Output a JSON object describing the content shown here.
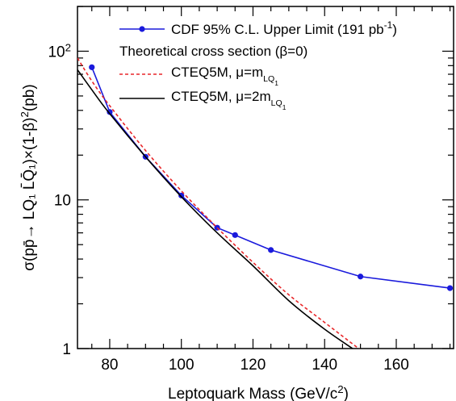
{
  "chart_data": {
    "type": "line",
    "title": "",
    "xlabel": "Leptoquark Mass (GeV/c²)",
    "ylabel": "σ(pp̄→ LQ₁ L̄Q̄₁)×(1-β)²(pb)",
    "xlim": [
      71,
      176
    ],
    "ylim": [
      1,
      200
    ],
    "y_scale": "log",
    "x_ticks": [
      80,
      100,
      120,
      140,
      160
    ],
    "y_ticks": [
      {
        "value": 1,
        "label": "1"
      },
      {
        "value": 10,
        "label": "10"
      },
      {
        "value": 100,
        "label": "10²"
      }
    ],
    "grid": false,
    "legend_position": "top-right",
    "legend_header": "Theoretical cross section (β=0)",
    "series": [
      {
        "name": "CDF 95% C.L. Upper Limit (191 pb⁻¹)",
        "color": "#1a1adc",
        "style": "solid-markers",
        "x": [
          75,
          80,
          90,
          100,
          110,
          115,
          125,
          150,
          175
        ],
        "y": [
          78,
          39,
          19.5,
          10.7,
          6.5,
          5.8,
          4.6,
          3.05,
          2.55
        ]
      },
      {
        "name": "CTEQ5M, μ=m_LQ₁",
        "color": "#e8272a",
        "style": "dashed",
        "x": [
          71,
          75,
          80,
          90,
          100,
          110,
          120,
          130,
          140,
          150,
          160
        ],
        "y": [
          90,
          63,
          43,
          21.5,
          11.5,
          6.5,
          3.8,
          2.3,
          1.5,
          0.98,
          0.65
        ]
      },
      {
        "name": "CTEQ5M, μ=2m_LQ₁",
        "color": "#000000",
        "style": "solid",
        "x": [
          71,
          75,
          80,
          90,
          100,
          110,
          120,
          130,
          140,
          150,
          160
        ],
        "y": [
          75,
          55,
          38,
          19.5,
          10.5,
          6,
          3.6,
          2.1,
          1.35,
          0.92,
          0.62
        ]
      }
    ]
  }
}
